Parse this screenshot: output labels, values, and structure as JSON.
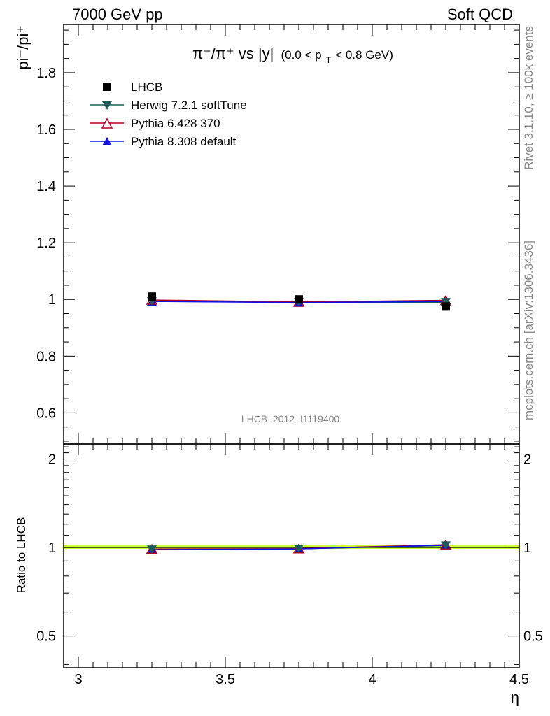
{
  "header": {
    "left": "7000 GeV pp",
    "right": "Soft QCD"
  },
  "side": {
    "top": "Rivet 3.1.10, ≥ 100k events",
    "bottom": "mcplots.cern.ch [arXiv:1306.3436]"
  },
  "watermark": "LHCB_2012_I1119400",
  "colors": {
    "data": "#000000",
    "herwig": "#1d5c5c",
    "pythia6": "#b00020",
    "pythia8": "#1010e0",
    "band": "#ccff33"
  },
  "chart_data": [
    {
      "type": "scatter",
      "title_main": "π⁻/π⁺ vs |y|",
      "title_sub": "(0.0 < p",
      "title_sub_idx": "T",
      "title_sub_end": " < 0.8 GeV)",
      "ylabel": "pi⁻/pi⁺",
      "xlabel": "η",
      "xlim": [
        2.95,
        4.5
      ],
      "ylim": [
        0.49,
        1.97
      ],
      "x_ticks": [
        "3",
        "3.5",
        "4",
        "4.5"
      ],
      "y_ticks": [
        "0.6",
        "0.8",
        "1",
        "1.2",
        "1.4",
        "1.6",
        "1.8"
      ],
      "grid": false,
      "legend_position": "top-left",
      "x": [
        3.25,
        3.75,
        4.25
      ],
      "series": [
        {
          "name": "LHCB",
          "marker": "square",
          "values": [
            1.01,
            1.0,
            0.975
          ]
        },
        {
          "name": "Herwig 7.2.1 softTune",
          "marker": "triangle-down",
          "values": [
            0.993,
            0.99,
            0.99
          ]
        },
        {
          "name": "Pythia 6.428 370",
          "marker": "triangle-open",
          "values": [
            0.998,
            0.991,
            0.997
          ]
        },
        {
          "name": "Pythia 8.308 default",
          "marker": "triangle-up",
          "values": [
            0.993,
            0.989,
            0.993
          ]
        }
      ]
    },
    {
      "type": "line",
      "ylabel": "Ratio to LHCB",
      "xlim": [
        2.95,
        4.5
      ],
      "ylim": [
        0.39,
        2.25
      ],
      "y_ticks": [
        "0.5",
        "1",
        "2"
      ],
      "y_tick_values": [
        0.5,
        1,
        2
      ],
      "scale": "log",
      "x": [
        3.25,
        3.75,
        4.25
      ],
      "series": [
        {
          "name": "Herwig 7.2.1 softTune",
          "values": [
            0.983,
            0.99,
            1.015
          ]
        },
        {
          "name": "Pythia 6.428 370",
          "values": [
            0.988,
            0.991,
            1.022
          ]
        },
        {
          "name": "Pythia 8.308 default",
          "values": [
            0.983,
            0.989,
            1.018
          ]
        }
      ]
    }
  ]
}
